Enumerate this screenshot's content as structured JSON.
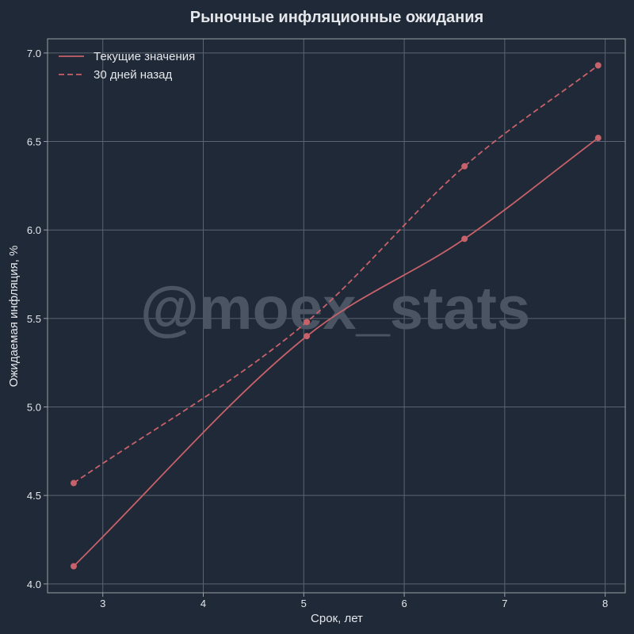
{
  "colors": {
    "background": "#1f2937",
    "axes_frame": "#9aa0a6",
    "grid": "#5b6472",
    "text": "#e5e7eb",
    "series": "#c8616a",
    "watermark": "#4a5462"
  },
  "watermark": "@moex_stats",
  "chart_data": {
    "type": "line",
    "title": "Рыночные инфляционные ожидания",
    "xlabel": "Срок, лет",
    "ylabel": "Ожидаемая инфляция, %",
    "xlim": [
      2.45,
      8.2
    ],
    "ylim": [
      3.95,
      7.08
    ],
    "x_ticks": [
      3,
      4,
      5,
      6,
      7,
      8
    ],
    "y_ticks": [
      4.0,
      4.5,
      5.0,
      5.5,
      6.0,
      6.5,
      7.0
    ],
    "grid": true,
    "legend_position": "top-left",
    "series": [
      {
        "name": "Текущие значения",
        "style": "solid",
        "x": [
          2.71,
          5.03,
          6.6,
          7.93
        ],
        "y": [
          4.1,
          5.4,
          5.95,
          6.52
        ]
      },
      {
        "name": "30 дней назад",
        "style": "dashed",
        "x": [
          2.71,
          5.03,
          6.6,
          7.93
        ],
        "y": [
          4.57,
          5.48,
          6.36,
          6.93
        ]
      }
    ]
  }
}
